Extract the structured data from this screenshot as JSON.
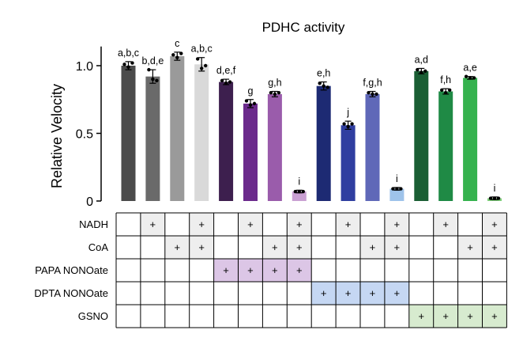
{
  "chart_data": {
    "type": "bar",
    "title": "PDHC activity",
    "xlabel": "",
    "ylabel": "Relative Velocity",
    "ylim": [
      0,
      1.2
    ],
    "yticks": [
      {
        "value": 0,
        "label": "0"
      },
      {
        "value": 0.5,
        "label": "0.5"
      },
      {
        "value": 1.0,
        "label": "1.0"
      }
    ],
    "grid": false,
    "legend": "none",
    "bars": [
      {
        "value": 1.0,
        "error": 0.03,
        "label": "a,b,c",
        "color": "#4b4b4b",
        "points": [
          1.01,
          0.99,
          1.02
        ]
      },
      {
        "value": 0.92,
        "error": 0.05,
        "label": "b,d,e",
        "color": "#6a6a6a",
        "points": [
          0.97,
          0.9,
          0.89
        ]
      },
      {
        "value": 1.07,
        "error": 0.03,
        "label": "c",
        "color": "#9a9a9a",
        "points": [
          1.08,
          1.06,
          1.09
        ]
      },
      {
        "value": 1.01,
        "error": 0.05,
        "label": "a,b,c",
        "color": "#d9d9d9",
        "points": [
          1.05,
          0.98,
          1.0
        ]
      },
      {
        "value": 0.88,
        "error": 0.02,
        "label": "d,e,f",
        "color": "#3d1f4e",
        "points": [
          0.89,
          0.87,
          0.88
        ]
      },
      {
        "value": 0.72,
        "error": 0.03,
        "label": "g",
        "color": "#6b2a8c",
        "points": [
          0.74,
          0.71,
          0.72
        ]
      },
      {
        "value": 0.79,
        "error": 0.02,
        "label": "g,h",
        "color": "#9a5cab",
        "points": [
          0.8,
          0.79,
          0.8
        ]
      },
      {
        "value": 0.07,
        "error": 0.01,
        "label": "i",
        "color": "#c9a0d2",
        "points": [
          0.07,
          0.07,
          0.07
        ]
      },
      {
        "value": 0.85,
        "error": 0.03,
        "label": "e,h",
        "color": "#1d2a73",
        "points": [
          0.87,
          0.85,
          0.84
        ]
      },
      {
        "value": 0.56,
        "error": 0.03,
        "label": "j",
        "color": "#2f3ea0",
        "points": [
          0.57,
          0.55,
          0.57
        ]
      },
      {
        "value": 0.79,
        "error": 0.02,
        "label": "f,g,h",
        "color": "#5f68b8",
        "points": [
          0.8,
          0.79,
          0.79
        ]
      },
      {
        "value": 0.09,
        "error": 0.01,
        "label": "i",
        "color": "#9ec3ea",
        "points": [
          0.09,
          0.09,
          0.09
        ]
      },
      {
        "value": 0.96,
        "error": 0.02,
        "label": "a,d",
        "color": "#1a5e34",
        "points": [
          0.97,
          0.95,
          0.96
        ]
      },
      {
        "value": 0.81,
        "error": 0.02,
        "label": "f,h",
        "color": "#1f8a45",
        "points": [
          0.82,
          0.8,
          0.82
        ]
      },
      {
        "value": 0.91,
        "error": 0.01,
        "label": "a,e",
        "color": "#35b24e",
        "points": [
          0.92,
          0.91,
          0.91
        ]
      },
      {
        "value": 0.02,
        "error": 0.01,
        "label": "i",
        "color": "#7fcf7a",
        "points": [
          0.02,
          0.02,
          0.02
        ]
      }
    ]
  },
  "conditions": {
    "symbol": "+",
    "rows": [
      {
        "label": "NADH",
        "marks": [
          0,
          1,
          0,
          1,
          0,
          1,
          0,
          1,
          0,
          1,
          0,
          1,
          0,
          1,
          0,
          1
        ],
        "shade": [
          0,
          1,
          0,
          1,
          0,
          1,
          0,
          1,
          0,
          1,
          0,
          1,
          0,
          1,
          0,
          1
        ],
        "shade_color": "#eeeeee"
      },
      {
        "label": "CoA",
        "marks": [
          0,
          0,
          1,
          1,
          0,
          0,
          1,
          1,
          0,
          0,
          1,
          1,
          0,
          0,
          1,
          1
        ],
        "shade": [
          0,
          0,
          1,
          1,
          0,
          0,
          1,
          1,
          0,
          0,
          1,
          1,
          0,
          0,
          1,
          1
        ],
        "shade_color": "#eeeeee"
      },
      {
        "label": "PAPA NONOate",
        "marks": [
          0,
          0,
          0,
          0,
          1,
          1,
          1,
          1,
          0,
          0,
          0,
          0,
          0,
          0,
          0,
          0
        ],
        "shade": [
          0,
          0,
          0,
          0,
          1,
          1,
          1,
          1,
          0,
          0,
          0,
          0,
          0,
          0,
          0,
          0
        ],
        "shade_color": "#dcc6e6"
      },
      {
        "label": "DPTA NONOate",
        "marks": [
          0,
          0,
          0,
          0,
          0,
          0,
          0,
          0,
          1,
          1,
          1,
          1,
          0,
          0,
          0,
          0
        ],
        "shade": [
          0,
          0,
          0,
          0,
          0,
          0,
          0,
          0,
          1,
          1,
          1,
          1,
          0,
          0,
          0,
          0
        ],
        "shade_color": "#c5d7f3"
      },
      {
        "label": "GSNO",
        "marks": [
          0,
          0,
          0,
          0,
          0,
          0,
          0,
          0,
          0,
          0,
          0,
          0,
          1,
          1,
          1,
          1
        ],
        "shade": [
          0,
          0,
          0,
          0,
          0,
          0,
          0,
          0,
          0,
          0,
          0,
          0,
          1,
          1,
          1,
          1
        ],
        "shade_color": "#d7ebcf"
      }
    ]
  }
}
